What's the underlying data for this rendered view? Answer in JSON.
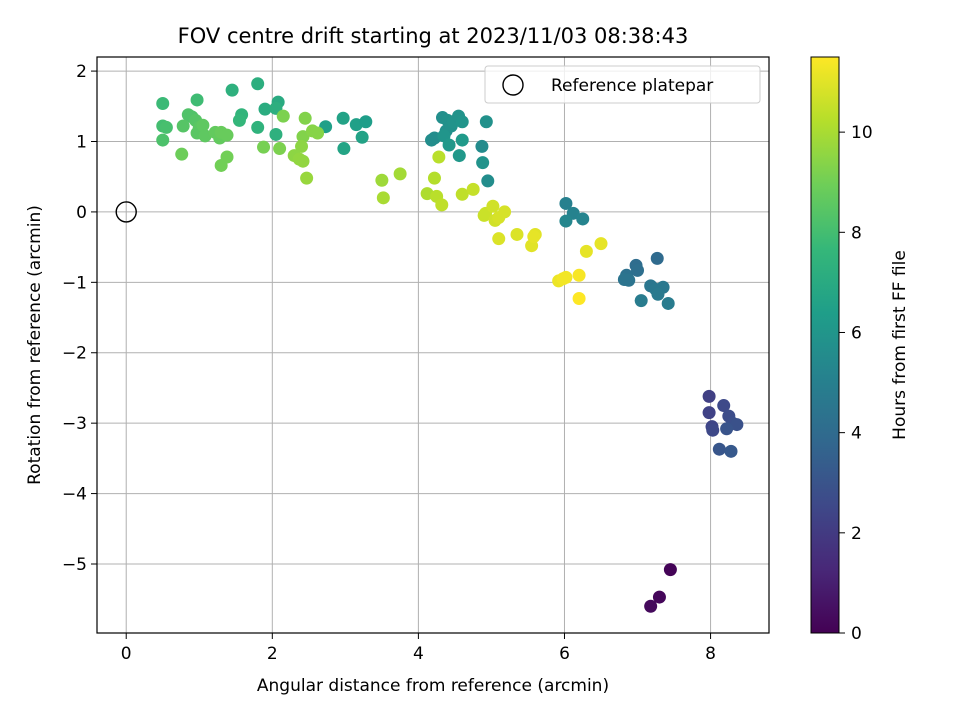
{
  "chart_data": {
    "type": "scatter",
    "title": "FOV centre drift starting at 2023/11/03 08:38:43",
    "xlabel": "Angular distance from reference (arcmin)",
    "ylabel": "Rotation from reference (arcmin)",
    "xlim": [
      -0.4,
      8.8
    ],
    "ylim": [
      -5.98,
      2.2
    ],
    "x_ticks": [
      0,
      2,
      4,
      6,
      8
    ],
    "y_ticks": [
      -5,
      -4,
      -3,
      -2,
      -1,
      0,
      1,
      2
    ],
    "grid": true,
    "legend": {
      "placement": "top-right",
      "entries": [
        "Reference platepar"
      ]
    },
    "reference": {
      "x": 0,
      "y": 0,
      "label": "Reference platepar"
    },
    "colorbar": {
      "label": "Hours from first FF file",
      "colormap": "viridis",
      "range": [
        0,
        11.5
      ],
      "ticks": [
        0,
        2,
        4,
        6,
        8,
        10
      ]
    },
    "colormap_stops": [
      "#440154",
      "#482878",
      "#3e4989",
      "#31688e",
      "#26828e",
      "#1f9e89",
      "#35b779",
      "#6ece58",
      "#b5de2b",
      "#fde725"
    ],
    "points": [
      {
        "x": 7.45,
        "y": -5.08,
        "c": 0.1
      },
      {
        "x": 7.3,
        "y": -5.47,
        "c": 0.2
      },
      {
        "x": 7.18,
        "y": -5.6,
        "c": 0.3
      },
      {
        "x": 7.98,
        "y": -2.62,
        "c": 2.2
      },
      {
        "x": 7.98,
        "y": -2.85,
        "c": 2.3
      },
      {
        "x": 8.02,
        "y": -3.05,
        "c": 2.4
      },
      {
        "x": 8.03,
        "y": -3.1,
        "c": 2.5
      },
      {
        "x": 8.18,
        "y": -2.75,
        "c": 2.6
      },
      {
        "x": 8.25,
        "y": -2.9,
        "c": 2.7
      },
      {
        "x": 8.3,
        "y": -3.0,
        "c": 2.8
      },
      {
        "x": 8.36,
        "y": -3.02,
        "c": 2.9
      },
      {
        "x": 8.22,
        "y": -3.08,
        "c": 3.0
      },
      {
        "x": 8.12,
        "y": -3.37,
        "c": 3.1
      },
      {
        "x": 8.28,
        "y": -3.4,
        "c": 3.2
      },
      {
        "x": 7.27,
        "y": -0.66,
        "c": 4.0
      },
      {
        "x": 6.98,
        "y": -0.76,
        "c": 4.1
      },
      {
        "x": 7.0,
        "y": -0.83,
        "c": 4.2
      },
      {
        "x": 6.85,
        "y": -0.9,
        "c": 4.3
      },
      {
        "x": 6.82,
        "y": -0.96,
        "c": 4.4
      },
      {
        "x": 6.88,
        "y": -0.97,
        "c": 4.4
      },
      {
        "x": 7.18,
        "y": -1.05,
        "c": 4.5
      },
      {
        "x": 7.25,
        "y": -1.1,
        "c": 4.6
      },
      {
        "x": 7.35,
        "y": -1.07,
        "c": 4.6
      },
      {
        "x": 7.28,
        "y": -1.17,
        "c": 4.7
      },
      {
        "x": 7.05,
        "y": -1.26,
        "c": 4.8
      },
      {
        "x": 7.42,
        "y": -1.3,
        "c": 4.8
      },
      {
        "x": 6.02,
        "y": 0.12,
        "c": 5.0
      },
      {
        "x": 6.12,
        "y": -0.02,
        "c": 5.1
      },
      {
        "x": 6.25,
        "y": -0.1,
        "c": 5.2
      },
      {
        "x": 6.02,
        "y": -0.13,
        "c": 5.3
      },
      {
        "x": 4.18,
        "y": 1.02,
        "c": 5.6
      },
      {
        "x": 4.22,
        "y": 1.05,
        "c": 5.6
      },
      {
        "x": 4.33,
        "y": 1.34,
        "c": 5.7
      },
      {
        "x": 4.38,
        "y": 1.15,
        "c": 5.7
      },
      {
        "x": 4.4,
        "y": 1.3,
        "c": 5.8
      },
      {
        "x": 4.45,
        "y": 1.22,
        "c": 5.8
      },
      {
        "x": 4.48,
        "y": 1.28,
        "c": 5.9
      },
      {
        "x": 4.55,
        "y": 1.36,
        "c": 5.9
      },
      {
        "x": 4.6,
        "y": 1.28,
        "c": 6.0
      },
      {
        "x": 4.35,
        "y": 1.08,
        "c": 6.0
      },
      {
        "x": 4.42,
        "y": 0.95,
        "c": 6.1
      },
      {
        "x": 4.56,
        "y": 0.8,
        "c": 6.1
      },
      {
        "x": 4.6,
        "y": 1.02,
        "c": 6.2
      },
      {
        "x": 4.87,
        "y": 0.93,
        "c": 5.5
      },
      {
        "x": 4.93,
        "y": 1.28,
        "c": 5.8
      },
      {
        "x": 4.88,
        "y": 0.7,
        "c": 5.9
      },
      {
        "x": 4.95,
        "y": 0.44,
        "c": 5.6
      },
      {
        "x": 2.73,
        "y": 1.21,
        "c": 6.5
      },
      {
        "x": 2.97,
        "y": 1.33,
        "c": 6.6
      },
      {
        "x": 2.98,
        "y": 0.9,
        "c": 6.7
      },
      {
        "x": 3.15,
        "y": 1.24,
        "c": 6.5
      },
      {
        "x": 3.23,
        "y": 1.06,
        "c": 6.6
      },
      {
        "x": 3.28,
        "y": 1.28,
        "c": 6.4
      },
      {
        "x": 1.8,
        "y": 1.82,
        "c": 7.2
      },
      {
        "x": 1.45,
        "y": 1.73,
        "c": 7.3
      },
      {
        "x": 1.9,
        "y": 1.46,
        "c": 7.1
      },
      {
        "x": 2.08,
        "y": 1.56,
        "c": 7.0
      },
      {
        "x": 2.05,
        "y": 1.47,
        "c": 7.2
      },
      {
        "x": 1.8,
        "y": 1.2,
        "c": 7.4
      },
      {
        "x": 1.58,
        "y": 1.38,
        "c": 7.5
      },
      {
        "x": 1.55,
        "y": 1.3,
        "c": 7.6
      },
      {
        "x": 2.05,
        "y": 1.1,
        "c": 7.3
      },
      {
        "x": 0.5,
        "y": 1.54,
        "c": 7.8
      },
      {
        "x": 0.97,
        "y": 1.59,
        "c": 7.9
      },
      {
        "x": 0.5,
        "y": 1.22,
        "c": 8.0
      },
      {
        "x": 0.55,
        "y": 1.2,
        "c": 8.1
      },
      {
        "x": 0.5,
        "y": 1.02,
        "c": 8.2
      },
      {
        "x": 0.85,
        "y": 1.38,
        "c": 8.3
      },
      {
        "x": 0.9,
        "y": 1.35,
        "c": 8.3
      },
      {
        "x": 0.78,
        "y": 1.22,
        "c": 8.4
      },
      {
        "x": 0.95,
        "y": 1.3,
        "c": 8.4
      },
      {
        "x": 0.97,
        "y": 1.12,
        "c": 8.5
      },
      {
        "x": 1.0,
        "y": 1.2,
        "c": 8.5
      },
      {
        "x": 1.05,
        "y": 1.23,
        "c": 8.6
      },
      {
        "x": 1.08,
        "y": 1.08,
        "c": 8.6
      },
      {
        "x": 1.22,
        "y": 1.13,
        "c": 8.7
      },
      {
        "x": 1.28,
        "y": 1.05,
        "c": 8.7
      },
      {
        "x": 1.3,
        "y": 1.13,
        "c": 8.8
      },
      {
        "x": 1.38,
        "y": 1.09,
        "c": 8.8
      },
      {
        "x": 0.76,
        "y": 0.82,
        "c": 8.9
      },
      {
        "x": 1.38,
        "y": 0.78,
        "c": 9.0
      },
      {
        "x": 1.3,
        "y": 0.66,
        "c": 9.0
      },
      {
        "x": 1.88,
        "y": 0.92,
        "c": 9.1
      },
      {
        "x": 2.1,
        "y": 0.9,
        "c": 9.2
      },
      {
        "x": 2.15,
        "y": 1.36,
        "c": 9.2
      },
      {
        "x": 2.45,
        "y": 1.33,
        "c": 9.3
      },
      {
        "x": 2.42,
        "y": 1.07,
        "c": 9.3
      },
      {
        "x": 2.55,
        "y": 1.15,
        "c": 9.4
      },
      {
        "x": 2.62,
        "y": 1.12,
        "c": 9.4
      },
      {
        "x": 2.4,
        "y": 0.93,
        "c": 9.5
      },
      {
        "x": 2.3,
        "y": 0.8,
        "c": 9.5
      },
      {
        "x": 2.37,
        "y": 0.75,
        "c": 9.6
      },
      {
        "x": 2.42,
        "y": 0.72,
        "c": 9.6
      },
      {
        "x": 2.47,
        "y": 0.48,
        "c": 9.7
      },
      {
        "x": 3.5,
        "y": 0.45,
        "c": 9.8
      },
      {
        "x": 3.75,
        "y": 0.54,
        "c": 9.9
      },
      {
        "x": 3.52,
        "y": 0.2,
        "c": 10.0
      },
      {
        "x": 4.12,
        "y": 0.26,
        "c": 10.1
      },
      {
        "x": 4.22,
        "y": 0.48,
        "c": 10.2
      },
      {
        "x": 4.28,
        "y": 0.78,
        "c": 10.3
      },
      {
        "x": 4.25,
        "y": 0.22,
        "c": 10.3
      },
      {
        "x": 4.32,
        "y": 0.1,
        "c": 10.4
      },
      {
        "x": 4.6,
        "y": 0.25,
        "c": 10.4
      },
      {
        "x": 4.75,
        "y": 0.32,
        "c": 10.5
      },
      {
        "x": 4.9,
        "y": -0.05,
        "c": 10.6
      },
      {
        "x": 4.92,
        "y": -0.02,
        "c": 10.6
      },
      {
        "x": 5.02,
        "y": 0.08,
        "c": 10.7
      },
      {
        "x": 5.05,
        "y": -0.12,
        "c": 10.7
      },
      {
        "x": 5.1,
        "y": -0.08,
        "c": 10.8
      },
      {
        "x": 5.18,
        "y": 0.0,
        "c": 10.8
      },
      {
        "x": 5.1,
        "y": -0.38,
        "c": 10.9
      },
      {
        "x": 5.35,
        "y": -0.32,
        "c": 10.9
      },
      {
        "x": 5.55,
        "y": -0.48,
        "c": 11.0
      },
      {
        "x": 5.6,
        "y": -0.32,
        "c": 11.0
      },
      {
        "x": 5.58,
        "y": -0.35,
        "c": 11.1
      },
      {
        "x": 6.3,
        "y": -0.56,
        "c": 11.1
      },
      {
        "x": 6.5,
        "y": -0.45,
        "c": 11.1
      },
      {
        "x": 5.92,
        "y": -0.98,
        "c": 11.2
      },
      {
        "x": 5.98,
        "y": -0.95,
        "c": 11.3
      },
      {
        "x": 6.02,
        "y": -0.93,
        "c": 11.3
      },
      {
        "x": 6.2,
        "y": -0.9,
        "c": 11.4
      },
      {
        "x": 6.2,
        "y": -1.23,
        "c": 11.5
      }
    ]
  }
}
